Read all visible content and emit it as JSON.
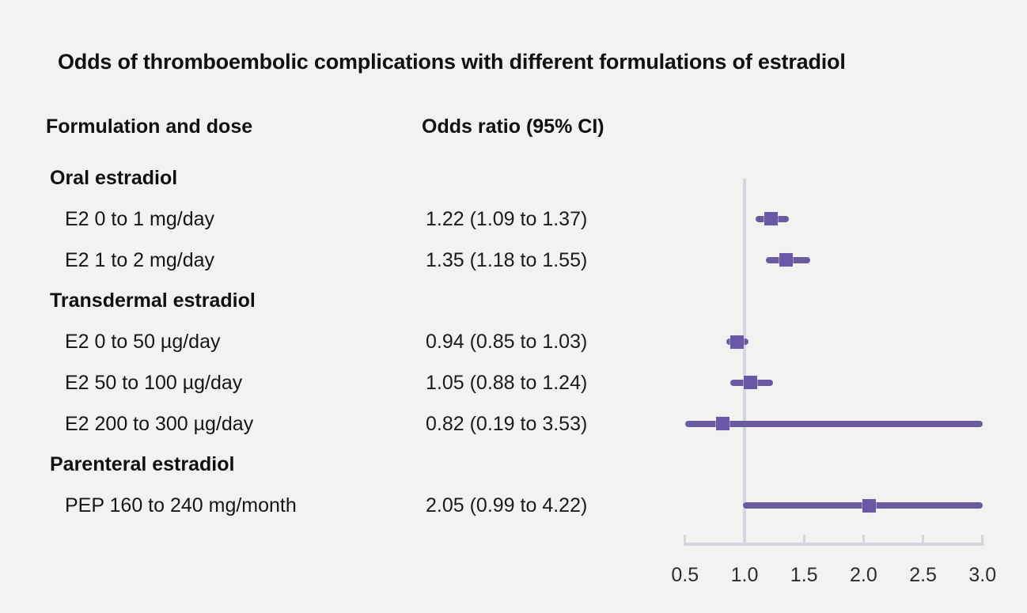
{
  "title": "Odds of thromboembolic complications with different formulations of estradiol",
  "columns": {
    "formulation": "Formulation and dose",
    "odds_ratio": "Odds ratio (95% CI)"
  },
  "colors": {
    "background": "#f2f2f0",
    "text": "#161616",
    "ci_line_purple": "#6b5b9e",
    "marker_purple": "#6958a8",
    "axis_gray": "#d2d6de"
  },
  "chart_data": {
    "type": "forest",
    "title": "Odds of thromboembolic complications with different formulations of estradiol",
    "xlim": [
      0.5,
      3.0
    ],
    "reference_value": 1.0,
    "tick_values": [
      0.5,
      1.0,
      1.5,
      2.0,
      2.5,
      3.0
    ],
    "tick_labels": [
      "0.5",
      "1.0",
      "1.5",
      "2.0",
      "2.5",
      "3.0"
    ],
    "rows": [
      {
        "kind": "group",
        "label": "Oral estradiol"
      },
      {
        "kind": "item",
        "label": "E2 0 to 1 mg/day",
        "display": "1.22 (1.09 to 1.37)",
        "or": 1.22,
        "lo": 1.09,
        "hi": 1.37
      },
      {
        "kind": "item",
        "label": "E2 1 to 2 mg/day",
        "display": "1.35 (1.18 to 1.55)",
        "or": 1.35,
        "lo": 1.18,
        "hi": 1.55
      },
      {
        "kind": "group",
        "label": "Transdermal estradiol"
      },
      {
        "kind": "item",
        "label": "E2 0 to 50 µg/day",
        "display": "0.94 (0.85 to 1.03)",
        "or": 0.94,
        "lo": 0.85,
        "hi": 1.03
      },
      {
        "kind": "item",
        "label": "E2 50 to 100 µg/day",
        "display": "1.05 (0.88 to 1.24)",
        "or": 1.05,
        "lo": 0.88,
        "hi": 1.24
      },
      {
        "kind": "item",
        "label": "E2 200 to 300 µg/day",
        "display": "0.82 (0.19 to 3.53)",
        "or": 0.82,
        "lo": 0.19,
        "hi": 3.53
      },
      {
        "kind": "group",
        "label": "Parenteral estradiol"
      },
      {
        "kind": "item",
        "label": "PEP 160 to 240 mg/month",
        "display": "2.05 (0.99 to 4.22)",
        "or": 2.05,
        "lo": 0.99,
        "hi": 4.22
      }
    ]
  }
}
